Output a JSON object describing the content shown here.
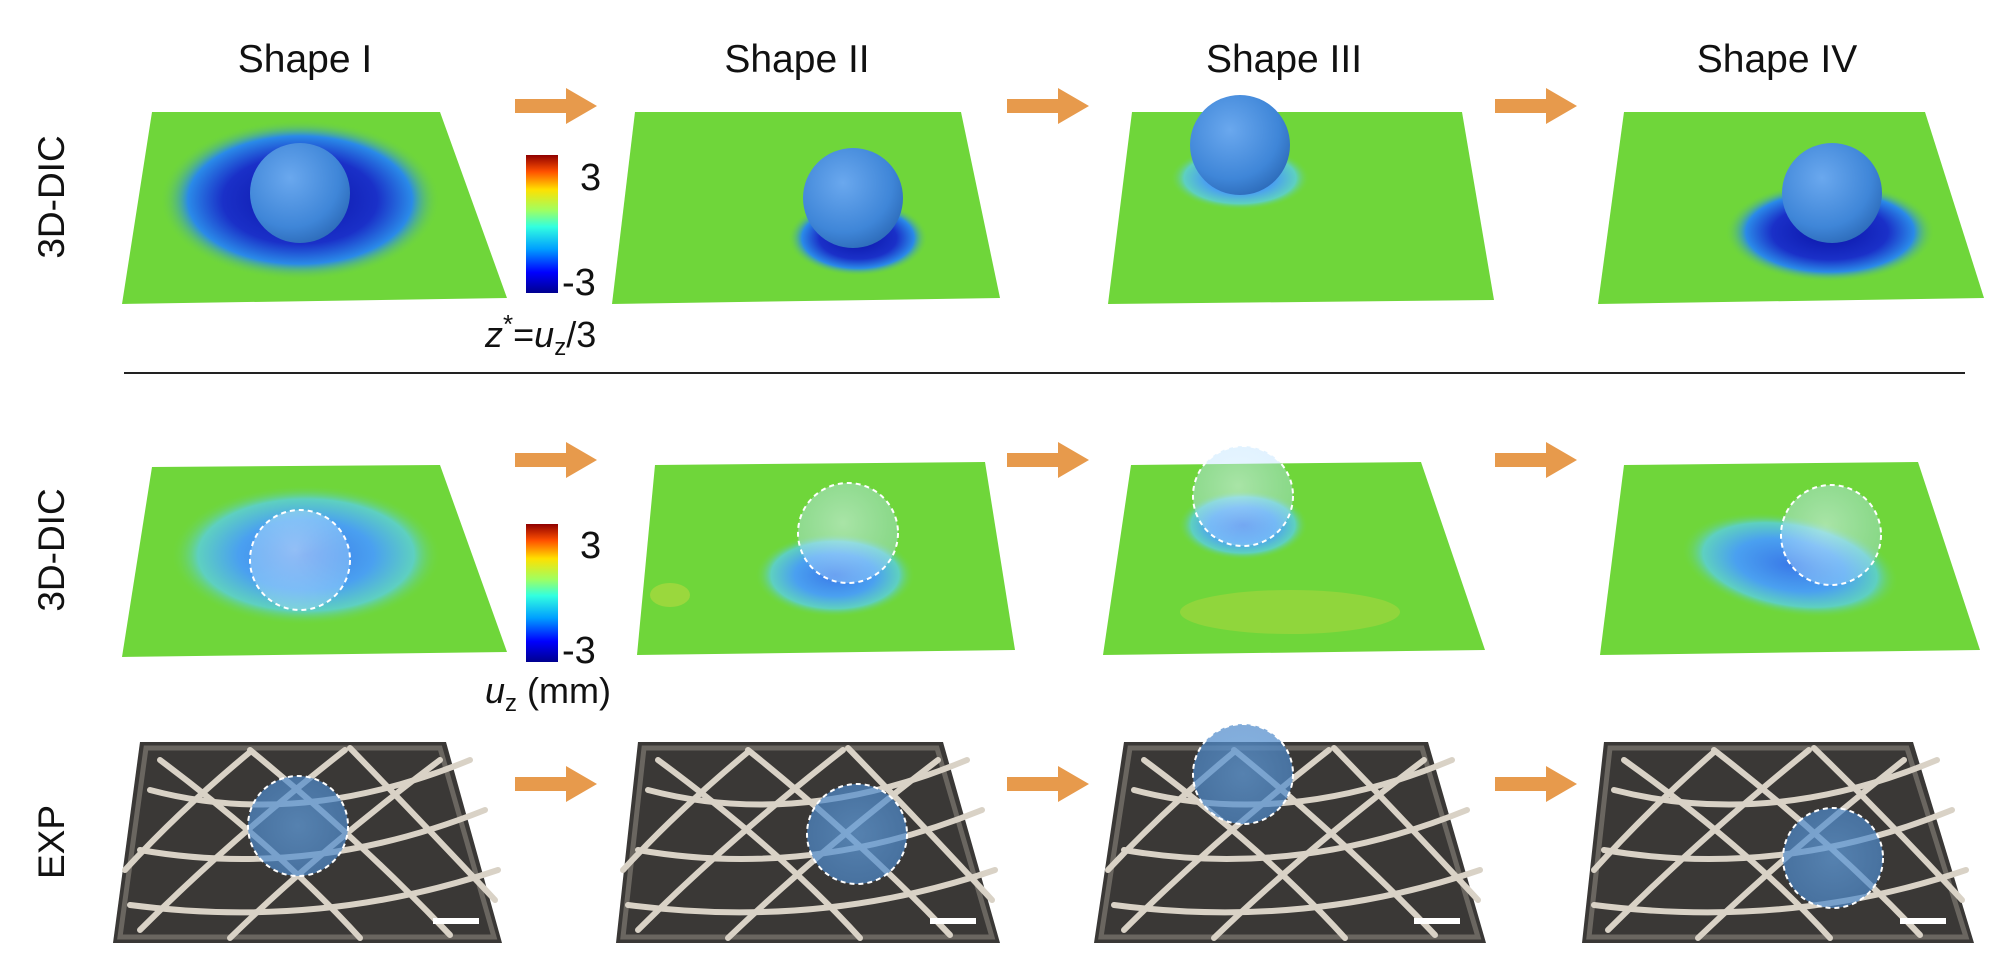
{
  "columns": [
    {
      "title": "Shape I"
    },
    {
      "title": "Shape II"
    },
    {
      "title": "Shape III"
    },
    {
      "title": "Shape IV"
    }
  ],
  "rows": [
    {
      "label": "3D-DIC"
    },
    {
      "label": "3D-DIC"
    },
    {
      "label": "EXP"
    }
  ],
  "colorbars": [
    {
      "max_label": "3",
      "min_label": "-3",
      "caption_var": "z",
      "caption_sup": "*",
      "caption_eq": "=",
      "caption_rhs_var": "u",
      "caption_rhs_sub": "z",
      "caption_rhs_tail": "/3"
    },
    {
      "max_label": "3",
      "min_label": "-3",
      "caption_var": "u",
      "caption_sub": "z",
      "caption_unit": " (mm)"
    }
  ],
  "colors": {
    "arrow": "#e79a4c",
    "surface_green": "#6fd63a",
    "ball_blue": "#3f86d8",
    "photo_dark": "#3a3836",
    "strut": "#d9d2c6"
  }
}
